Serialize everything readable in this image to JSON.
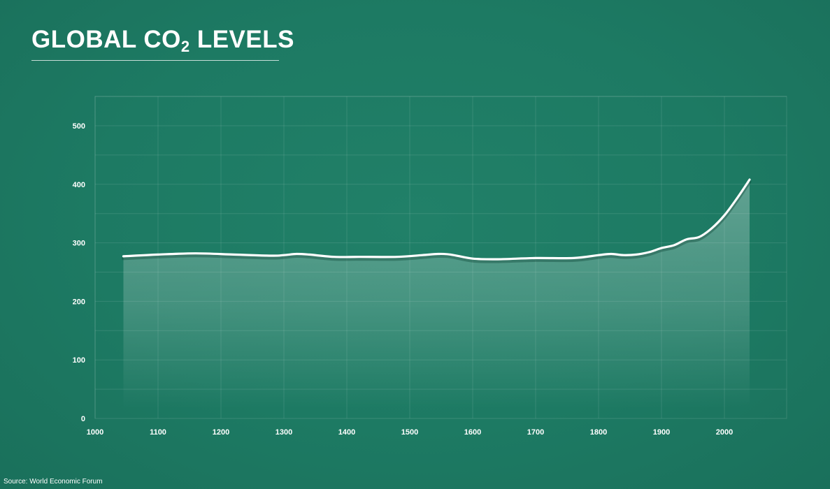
{
  "title": {
    "main": "GLOBAL CO",
    "subscript": "2",
    "suffix": " LEVELS"
  },
  "source": "Source:  World Economic Forum",
  "colors": {
    "background": "#1d7a63",
    "line": "#ffffff",
    "area": "#ffffff",
    "grid": "#ffffff"
  },
  "chart_data": {
    "type": "area",
    "title": "GLOBAL CO2 LEVELS",
    "xlabel": "",
    "ylabel": "",
    "xlim": [
      1000,
      2100
    ],
    "ylim": [
      0,
      550
    ],
    "x_ticks": [
      1000,
      1100,
      1200,
      1300,
      1400,
      1500,
      1600,
      1700,
      1800,
      1900,
      2000
    ],
    "y_ticks": [
      0,
      100,
      200,
      300,
      400,
      500
    ],
    "grid": true,
    "legend": "none",
    "series": [
      {
        "x": [
          1045,
          1100,
          1160,
          1220,
          1280,
          1300,
          1320,
          1340,
          1380,
          1420,
          1480,
          1520,
          1545,
          1565,
          1600,
          1640,
          1700,
          1760,
          1800,
          1820,
          1840,
          1860,
          1880,
          1900,
          1920,
          1940,
          1960,
          1980,
          2000,
          2020,
          2040
        ],
        "y": [
          277,
          280,
          282,
          280,
          278,
          279,
          281,
          280,
          276,
          276,
          276,
          279,
          281,
          280,
          273,
          272,
          274,
          274,
          279,
          281,
          279,
          280,
          284,
          291,
          296,
          306,
          310,
          325,
          347,
          376,
          408
        ]
      }
    ]
  }
}
